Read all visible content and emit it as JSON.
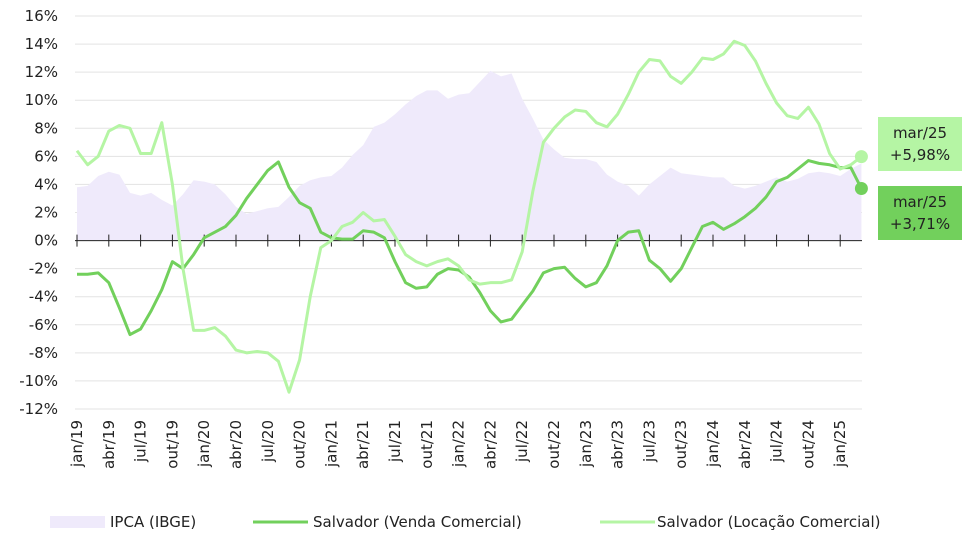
{
  "chart_data": {
    "type": "line",
    "categories": [
      "jan/19",
      null,
      null,
      "abr/19",
      null,
      null,
      "jul/19",
      null,
      null,
      "out/19",
      null,
      null,
      "jan/20",
      null,
      null,
      "abr/20",
      null,
      null,
      "jul/20",
      null,
      null,
      "out/20",
      null,
      null,
      "jan/21",
      null,
      null,
      "abr/21",
      null,
      null,
      "jul/21",
      null,
      null,
      "out/21",
      null,
      null,
      "jan/22",
      null,
      null,
      "abr/22",
      null,
      null,
      "jul/22",
      null,
      null,
      "out/22",
      null,
      null,
      "jan/23",
      null,
      null,
      "abr/23",
      null,
      null,
      "jul/23",
      null,
      null,
      "out/23",
      null,
      null,
      "jan/24",
      null,
      null,
      "abr/24",
      null,
      null,
      "jul/24",
      null,
      null,
      "out/24",
      null,
      null,
      "jan/25",
      null,
      null
    ],
    "series": [
      {
        "name": "IPCA (IBGE)",
        "kind": "area",
        "color": "#efeafb",
        "values": [
          3.8,
          3.9,
          4.6,
          4.9,
          4.7,
          3.4,
          3.2,
          3.4,
          2.9,
          2.5,
          3.3,
          4.3,
          4.2,
          4.0,
          3.3,
          2.4,
          1.9,
          2.1,
          2.3,
          2.4,
          3.1,
          3.9,
          4.3,
          4.5,
          4.6,
          5.2,
          6.1,
          6.8,
          8.1,
          8.4,
          9.0,
          9.7,
          10.3,
          10.7,
          10.7,
          10.1,
          10.4,
          10.5,
          11.3,
          12.1,
          11.7,
          11.9,
          10.1,
          8.7,
          7.2,
          6.5,
          5.9,
          5.8,
          5.8,
          5.6,
          4.7,
          4.2,
          3.9,
          3.2,
          4.0,
          4.6,
          5.2,
          4.8,
          4.7,
          4.6,
          4.5,
          4.5,
          3.9,
          3.7,
          3.9,
          4.2,
          4.5,
          4.2,
          4.4,
          4.8,
          4.9,
          4.8,
          4.6,
          5.1,
          5.5
        ]
      },
      {
        "name": "Salvador (Venda Comercial)",
        "kind": "line",
        "color": "#72d05c",
        "values": [
          -2.4,
          -2.4,
          -2.3,
          -3.0,
          -4.8,
          -6.7,
          -6.3,
          -5.0,
          -3.5,
          -1.5,
          -2.0,
          -1.0,
          0.2,
          0.6,
          1.0,
          1.8,
          3.0,
          4.0,
          5.0,
          5.6,
          3.8,
          2.7,
          2.3,
          0.6,
          0.2,
          0.1,
          0.1,
          0.7,
          0.6,
          0.2,
          -1.5,
          -3.0,
          -3.4,
          -3.3,
          -2.4,
          -2.0,
          -2.1,
          -2.6,
          -3.7,
          -5.0,
          -5.8,
          -5.6,
          -4.6,
          -3.6,
          -2.3,
          -2.0,
          -1.9,
          -2.7,
          -3.3,
          -3.0,
          -1.8,
          0.0,
          0.6,
          0.7,
          -1.4,
          -2.0,
          -2.9,
          -2.0,
          -0.5,
          1.0,
          1.3,
          0.8,
          1.2,
          1.7,
          2.3,
          3.1,
          4.2,
          4.5,
          5.1,
          5.7,
          5.5,
          5.4,
          5.2,
          5.2,
          3.71
        ]
      },
      {
        "name": "Salvador (Locação Comercial)",
        "kind": "line",
        "color": "#b5f5a4",
        "values": [
          6.4,
          5.4,
          6.0,
          7.8,
          8.2,
          8.0,
          6.2,
          6.2,
          8.4,
          4.0,
          -2.0,
          -6.4,
          -6.4,
          -6.2,
          -6.8,
          -7.8,
          -8.0,
          -7.9,
          -8.0,
          -8.6,
          -10.8,
          -8.5,
          -4.0,
          -0.5,
          0.0,
          1.0,
          1.3,
          2.0,
          1.4,
          1.5,
          0.3,
          -1.0,
          -1.5,
          -1.8,
          -1.5,
          -1.3,
          -1.8,
          -2.8,
          -3.1,
          -3.0,
          -3.0,
          -2.8,
          -0.8,
          3.5,
          7.0,
          8.0,
          8.8,
          9.3,
          9.2,
          8.4,
          8.1,
          9.0,
          10.4,
          12.0,
          12.9,
          12.8,
          11.7,
          11.2,
          12.0,
          13.0,
          12.9,
          13.3,
          14.2,
          13.9,
          12.8,
          11.2,
          9.8,
          8.9,
          8.7,
          9.5,
          8.3,
          6.2,
          5.1,
          5.4,
          5.98
        ]
      }
    ],
    "annotations": [
      {
        "label": "mar/25",
        "value": 5.98,
        "value_label": "+5,98%",
        "series": 2
      },
      {
        "label": "mar/25",
        "value": 3.71,
        "value_label": "+3,71%",
        "series": 1
      }
    ],
    "ylim": [
      -12,
      16
    ],
    "yticks": [
      {
        "value": -12,
        "label": "-12%"
      },
      {
        "value": -10,
        "label": "-10%"
      },
      {
        "value": -8,
        "label": "-8%"
      },
      {
        "value": -6,
        "label": "-6%"
      },
      {
        "value": -4,
        "label": "-4%"
      },
      {
        "value": -2,
        "label": "-2%"
      },
      {
        "value": 0,
        "label": "0%"
      },
      {
        "value": 2,
        "label": "2%"
      },
      {
        "value": 4,
        "label": "4%"
      },
      {
        "value": 6,
        "label": "6%"
      },
      {
        "value": 8,
        "label": "8%"
      },
      {
        "value": 10,
        "label": "10%"
      },
      {
        "value": 12,
        "label": "12%"
      },
      {
        "value": 14,
        "label": "14%"
      },
      {
        "value": 16,
        "label": "16%"
      }
    ],
    "grid": true,
    "legend": "bottom"
  }
}
